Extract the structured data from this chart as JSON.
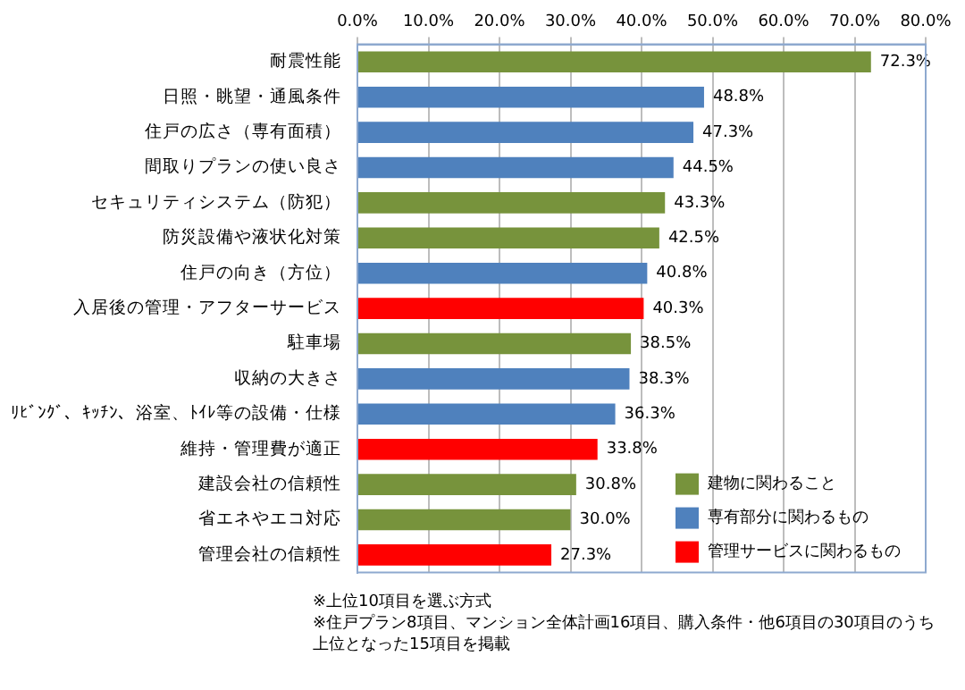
{
  "chart_data": {
    "type": "bar",
    "orientation": "horizontal",
    "categories": [
      "耐震性能",
      "日照・眺望・通風条件",
      "住戸の広さ（専有面積）",
      "間取りプランの使い良さ",
      "セキュリティシステム（防犯）",
      "防災設備や液状化対策",
      "住戸の向き（方位）",
      "入居後の管理・アフターサービス",
      "駐車場",
      "収納の大きさ",
      "ﾘﾋﾞﾝｸﾞ、ｷｯﾁﾝ、浴室、ﾄｲﾚ等の設備・仕様",
      "維持・管理費が適正",
      "建設会社の信頼性",
      "省エネやエコ対応",
      "管理会社の信頼性"
    ],
    "series": [
      {
        "name": "建物に関わること",
        "color": "#77933c",
        "values": [
          72.3,
          null,
          null,
          null,
          43.3,
          42.5,
          null,
          null,
          38.5,
          null,
          null,
          null,
          30.8,
          30.0,
          null
        ],
        "value_labels": [
          "72.3%",
          null,
          null,
          null,
          "43.3%",
          "42.5%",
          null,
          null,
          "38.5%",
          null,
          null,
          null,
          "30.8%",
          "30.0%",
          null
        ]
      },
      {
        "name": "専有部分に関わるもの",
        "color": "#4f81bd",
        "values": [
          null,
          48.8,
          47.3,
          44.5,
          null,
          null,
          40.8,
          null,
          null,
          38.3,
          36.3,
          null,
          null,
          null,
          null
        ],
        "value_labels": [
          null,
          "48.8%",
          "47.3%",
          "44.5%",
          null,
          null,
          "40.8%",
          null,
          null,
          "38.3%",
          "36.3%",
          null,
          null,
          null,
          null
        ]
      },
      {
        "name": "管理サービスに関わるもの",
        "color": "#ff0000",
        "values": [
          null,
          null,
          null,
          null,
          null,
          null,
          null,
          40.3,
          null,
          null,
          null,
          33.8,
          null,
          null,
          27.3
        ],
        "value_labels": [
          null,
          null,
          null,
          null,
          null,
          null,
          null,
          "40.3%",
          null,
          null,
          null,
          "33.8%",
          null,
          null,
          "27.3%"
        ]
      }
    ],
    "xlim": [
      0,
      80
    ],
    "xticks": [
      {
        "value": 0,
        "label": "0.0%"
      },
      {
        "value": 10,
        "label": "10.0%"
      },
      {
        "value": 20,
        "label": "20.0%"
      },
      {
        "value": 30,
        "label": "30.0%"
      },
      {
        "value": 40,
        "label": "40.0%"
      },
      {
        "value": 50,
        "label": "50.0%"
      },
      {
        "value": 60,
        "label": "60.0%"
      },
      {
        "value": 70,
        "label": "70.0%"
      },
      {
        "value": 80,
        "label": "80.0%"
      }
    ],
    "grid": "x",
    "legend": "bottom right",
    "annotations": [
      "※上位10項目を選ぶ方式",
      "※住戸プラン8項目、マンション全体計画16項目、購入条件・他6項目の30項目のうち",
      "上位となった15項目を掲載"
    ]
  }
}
